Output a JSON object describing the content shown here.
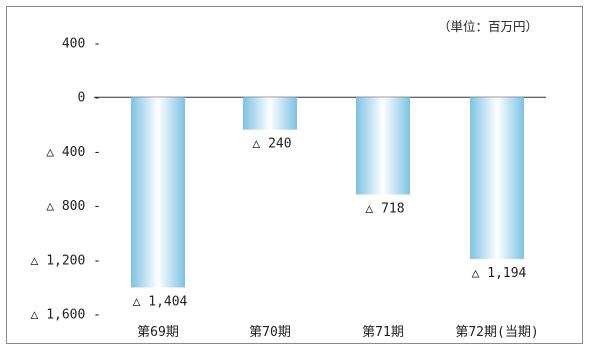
{
  "unit_note": "（単位：百万円）",
  "colors": {
    "bar_edge": "#7cc3e4",
    "bar_center": "#ffffff",
    "axis": "#333333",
    "frame": "#8a8a8a"
  },
  "chart_data": {
    "type": "bar",
    "categories": [
      "第69期",
      "第70期",
      "第71期",
      "第72期(当期)"
    ],
    "values": [
      -1404,
      -240,
      -718,
      -1194
    ],
    "value_labels": [
      "△ 1,404",
      "△ 240",
      "△ 718",
      "△ 1,194"
    ],
    "yticks": [
      400,
      0,
      -400,
      -800,
      -1200,
      -1600
    ],
    "ytick_labels": [
      "400 -",
      "0 -",
      "△ 400 -",
      "△ 800 -",
      "△ 1,200 -",
      "△ 1,600 -"
    ],
    "ylim": [
      -1600,
      400
    ],
    "grid": false,
    "legend": "none"
  }
}
